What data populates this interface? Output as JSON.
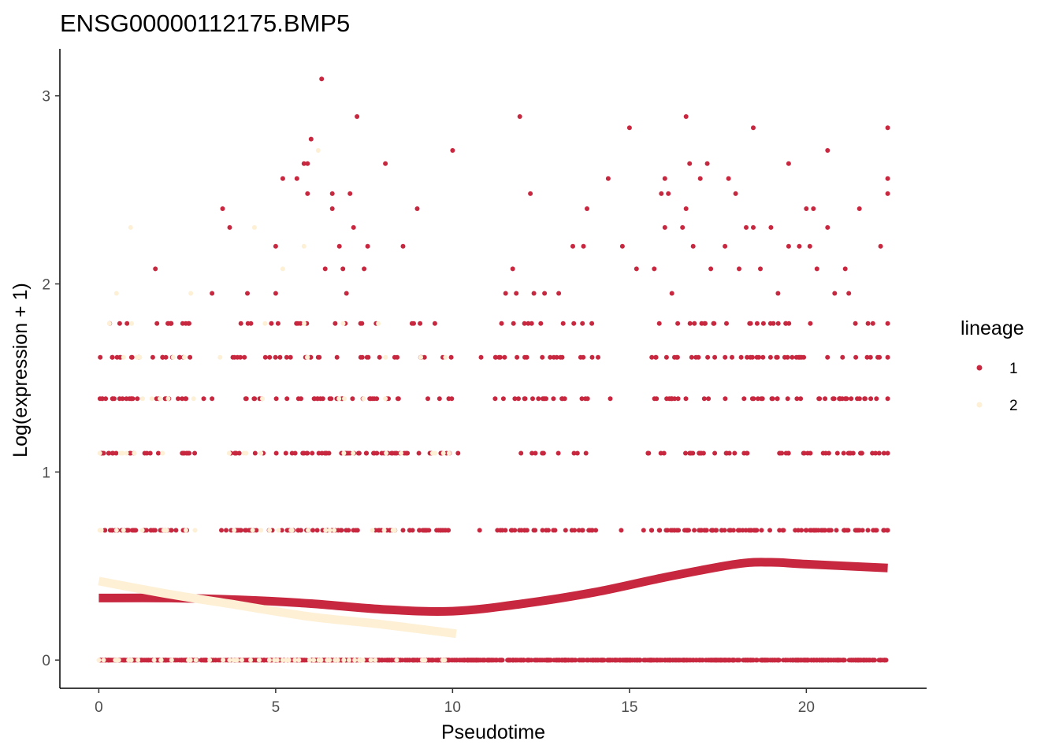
{
  "chart_data": {
    "type": "scatter",
    "title": "ENSG00000112175.BMP5",
    "xlabel": "Pseudotime",
    "ylabel": "Log(expression + 1)",
    "xlim": [
      -1.1,
      23.4
    ],
    "ylim": [
      -0.15,
      3.25
    ],
    "xticks": [
      0,
      5,
      10,
      15,
      20
    ],
    "yticks": [
      0,
      1,
      2,
      3
    ],
    "grid": false,
    "legend": {
      "title": "lineage",
      "position": "right"
    },
    "colors": {
      "1": "#c8283f",
      "2": "#fdf0d5"
    },
    "levels": [
      0,
      0.69,
      1.1,
      1.39,
      1.61,
      1.79,
      1.95,
      2.08
    ],
    "series": [
      {
        "name": "1",
        "color": "#c8283f",
        "points": [
          [
            0.1,
            1.39
          ],
          [
            0.4,
            1.1
          ],
          [
            1.6,
            2.08
          ],
          [
            1.9,
            1.39
          ],
          [
            2.4,
            1.1
          ],
          [
            3.2,
            1.95
          ],
          [
            3.5,
            2.4
          ],
          [
            3.7,
            2.3
          ],
          [
            3.2,
            1.39
          ],
          [
            4.2,
            1.95
          ],
          [
            4.3,
            1.79
          ],
          [
            4.0,
            1.61
          ],
          [
            5.0,
            2.2
          ],
          [
            5.0,
            1.95
          ],
          [
            5.2,
            2.56
          ],
          [
            5.6,
            2.56
          ],
          [
            5.7,
            1.79
          ],
          [
            5.8,
            2.64
          ],
          [
            5.9,
            2.64
          ],
          [
            5.9,
            2.48
          ],
          [
            6.0,
            2.77
          ],
          [
            6.3,
            3.09
          ],
          [
            6.4,
            2.08
          ],
          [
            6.6,
            2.48
          ],
          [
            6.6,
            2.4
          ],
          [
            6.8,
            2.2
          ],
          [
            6.9,
            2.08
          ],
          [
            7.1,
            2.48
          ],
          [
            7.2,
            2.3
          ],
          [
            7.3,
            2.89
          ],
          [
            7.4,
            1.79
          ],
          [
            7.5,
            2.08
          ],
          [
            7.6,
            2.2
          ],
          [
            7.0,
            1.95
          ],
          [
            6.2,
            1.61
          ],
          [
            8.1,
            2.64
          ],
          [
            8.6,
            2.2
          ],
          [
            9.0,
            2.4
          ],
          [
            10.0,
            2.71
          ],
          [
            9.5,
            1.79
          ],
          [
            8.9,
            1.79
          ],
          [
            11.9,
            2.89
          ],
          [
            12.2,
            2.48
          ],
          [
            11.7,
            2.08
          ],
          [
            11.5,
            1.95
          ],
          [
            11.8,
            1.95
          ],
          [
            12.3,
            1.95
          ],
          [
            12.6,
            1.95
          ],
          [
            13.0,
            1.95
          ],
          [
            13.4,
            2.2
          ],
          [
            13.7,
            2.2
          ],
          [
            13.8,
            2.4
          ],
          [
            14.4,
            2.56
          ],
          [
            15.0,
            2.83
          ],
          [
            14.8,
            2.2
          ],
          [
            15.2,
            2.08
          ],
          [
            15.7,
            2.08
          ],
          [
            15.9,
            2.48
          ],
          [
            16.0,
            2.56
          ],
          [
            16.1,
            2.48
          ],
          [
            16.0,
            2.3
          ],
          [
            16.2,
            1.95
          ],
          [
            16.5,
            2.3
          ],
          [
            16.6,
            2.89
          ],
          [
            16.7,
            2.64
          ],
          [
            16.6,
            2.4
          ],
          [
            16.8,
            2.2
          ],
          [
            17.0,
            2.56
          ],
          [
            17.2,
            2.64
          ],
          [
            17.3,
            2.08
          ],
          [
            17.7,
            2.2
          ],
          [
            17.8,
            2.56
          ],
          [
            18.0,
            2.48
          ],
          [
            18.1,
            2.08
          ],
          [
            18.3,
            2.3
          ],
          [
            18.5,
            2.83
          ],
          [
            18.5,
            2.3
          ],
          [
            18.7,
            2.08
          ],
          [
            19.0,
            2.3
          ],
          [
            19.2,
            1.95
          ],
          [
            19.5,
            2.64
          ],
          [
            19.5,
            2.2
          ],
          [
            19.8,
            2.2
          ],
          [
            20.0,
            2.4
          ],
          [
            20.2,
            2.4
          ],
          [
            20.1,
            2.2
          ],
          [
            20.3,
            2.08
          ],
          [
            20.6,
            2.71
          ],
          [
            20.6,
            2.3
          ],
          [
            20.8,
            1.95
          ],
          [
            21.1,
            2.08
          ],
          [
            21.2,
            1.95
          ],
          [
            21.5,
            2.4
          ],
          [
            22.1,
            2.2
          ],
          [
            22.3,
            2.83
          ],
          [
            22.3,
            2.56
          ],
          [
            22.3,
            2.48
          ],
          [
            22.3,
            1.79
          ],
          [
            22.3,
            1.61
          ],
          [
            22.3,
            1.39
          ],
          [
            22.3,
            1.1
          ],
          [
            22.3,
            0.69
          ]
        ]
      },
      {
        "name": "2",
        "color": "#fdf0d5",
        "points": [
          [
            0.9,
            2.3
          ],
          [
            0.5,
            1.95
          ],
          [
            0.3,
            1.79
          ],
          [
            0.7,
            1.61
          ],
          [
            1.1,
            1.61
          ],
          [
            2.1,
            1.61
          ],
          [
            1.5,
            1.39
          ],
          [
            2.6,
            1.95
          ],
          [
            4.4,
            2.3
          ],
          [
            4.7,
            1.79
          ],
          [
            5.2,
            2.08
          ],
          [
            5.8,
            2.2
          ],
          [
            5.9,
            1.61
          ],
          [
            6.2,
            2.71
          ],
          [
            7.9,
            1.79
          ],
          [
            8.1,
            1.39
          ],
          [
            9.1,
            1.61
          ],
          [
            9.8,
            1.61
          ],
          [
            1.0,
            1.1
          ],
          [
            4.1,
            1.1
          ],
          [
            9.9,
            1.1
          ]
        ]
      }
    ],
    "curves": [
      {
        "name": "1",
        "color": "#c8283f",
        "x": [
          0,
          2,
          4,
          6,
          8,
          10,
          12,
          14,
          16,
          18,
          19,
          20,
          22.3
        ],
        "y": [
          0.33,
          0.33,
          0.32,
          0.3,
          0.27,
          0.26,
          0.3,
          0.36,
          0.44,
          0.51,
          0.52,
          0.51,
          0.49
        ]
      },
      {
        "name": "2",
        "color": "#fdf0d5",
        "x": [
          0,
          2,
          4,
          6,
          8,
          10.1
        ],
        "y": [
          0.42,
          0.35,
          0.29,
          0.23,
          0.19,
          0.14
        ]
      }
    ]
  }
}
